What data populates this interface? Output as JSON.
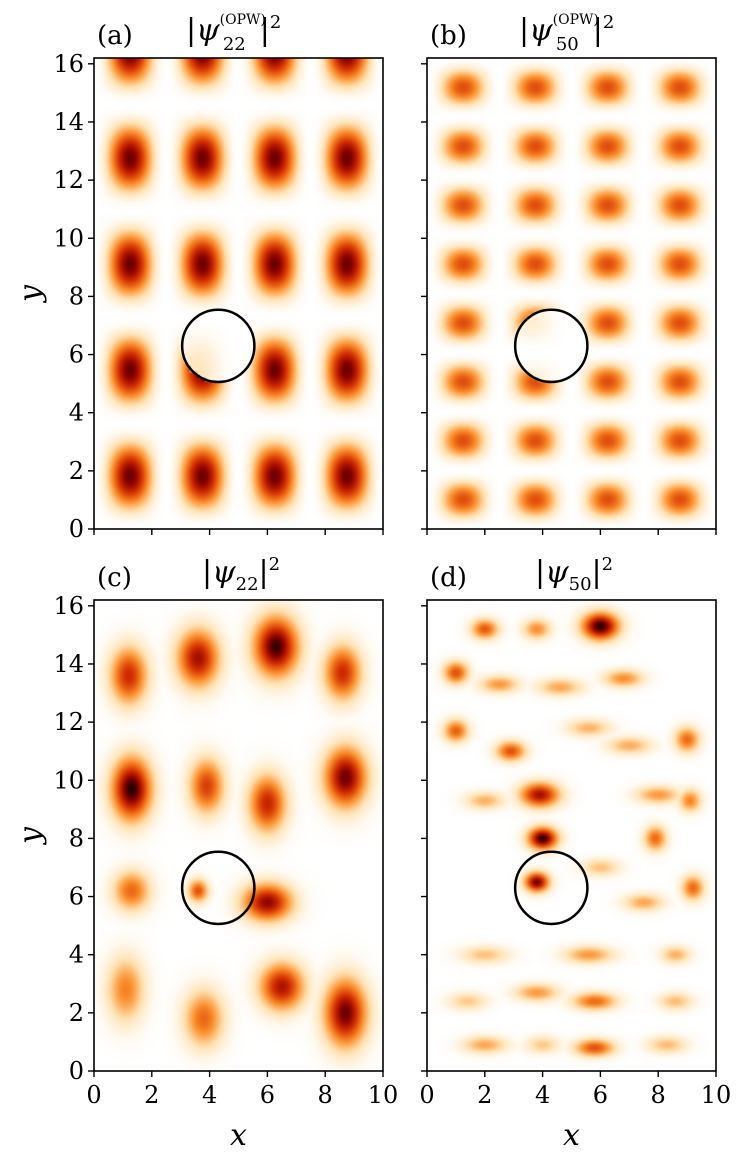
{
  "colors": {
    "colormap": "gist_heat_r",
    "circle": "#000000",
    "frame": "#000000"
  },
  "chart_data": [
    {
      "type": "heatmap",
      "panel": "(a)",
      "title": {
        "prefix": "|",
        "psi": "ψ",
        "sub": "22",
        "sup": "(OPW)",
        "suffix": "|",
        "power": "2"
      },
      "xlim": [
        0,
        10
      ],
      "ylim": [
        0,
        16.2
      ],
      "xticks": [],
      "yticks": [
        "0",
        "2",
        "4",
        "6",
        "8",
        "10",
        "12",
        "14",
        "16"
      ],
      "ylabel": "y",
      "xlabel": "",
      "circle": {
        "cx": 4.3,
        "cy": 6.3,
        "r": 1.25
      },
      "field": {
        "kind": "opw",
        "nx": 2,
        "ny": 2,
        "lx": 10,
        "ly": 16.2,
        "scale": 0.92
      }
    },
    {
      "type": "heatmap",
      "panel": "(b)",
      "title": {
        "prefix": "|",
        "psi": "ψ",
        "sub": "50",
        "sup": "(OPW)",
        "suffix": "|",
        "power": "2"
      },
      "xlim": [
        0,
        10
      ],
      "ylim": [
        0,
        16.2
      ],
      "xticks": [],
      "yticks": [],
      "ylabel": "",
      "xlabel": "",
      "circle": {
        "cx": 4.3,
        "cy": 6.3,
        "r": 1.25
      },
      "field": {
        "kind": "opw",
        "nx": 2,
        "ny": 4,
        "lx": 10,
        "ly": 16.2,
        "scale": 0.62
      }
    },
    {
      "type": "heatmap",
      "panel": "(c)",
      "title": {
        "prefix": "|",
        "psi": "ψ",
        "sub": "22",
        "sup": "",
        "suffix": "|",
        "power": "2"
      },
      "xlim": [
        0,
        10
      ],
      "ylim": [
        0,
        16.2
      ],
      "xticks": [
        "0",
        "2",
        "4",
        "6",
        "8",
        "10"
      ],
      "yticks": [
        "0",
        "2",
        "4",
        "6",
        "8",
        "10",
        "12",
        "14",
        "16"
      ],
      "ylabel": "y",
      "xlabel": "x",
      "circle": {
        "cx": 4.3,
        "cy": 6.3,
        "r": 1.25
      },
      "field": {
        "kind": "blobs",
        "blobs": [
          [
            1.3,
            9.7,
            0.8,
            1.25,
            1.0
          ],
          [
            8.7,
            10.1,
            0.85,
            1.2,
            0.92
          ],
          [
            6.3,
            14.6,
            0.9,
            1.2,
            0.98
          ],
          [
            8.7,
            2.0,
            0.85,
            1.35,
            0.92
          ],
          [
            1.2,
            13.6,
            0.75,
            1.15,
            0.72
          ],
          [
            3.6,
            14.2,
            0.85,
            1.15,
            0.82
          ],
          [
            8.6,
            13.7,
            0.75,
            1.1,
            0.72
          ],
          [
            3.9,
            9.8,
            0.7,
            1.1,
            0.66
          ],
          [
            6.0,
            9.2,
            0.75,
            1.15,
            0.74
          ],
          [
            6.0,
            5.8,
            1.0,
            0.75,
            0.86
          ],
          [
            3.6,
            6.2,
            0.4,
            0.45,
            0.62
          ],
          [
            1.3,
            6.2,
            0.75,
            0.8,
            0.55
          ],
          [
            6.5,
            2.9,
            0.9,
            0.95,
            0.8
          ],
          [
            1.1,
            2.8,
            0.75,
            1.3,
            0.48
          ],
          [
            3.8,
            1.8,
            0.8,
            1.15,
            0.55
          ]
        ]
      }
    },
    {
      "type": "heatmap",
      "panel": "(d)",
      "title": {
        "prefix": "|",
        "psi": "ψ",
        "sub": "50",
        "sup": "",
        "suffix": "|",
        "power": "2"
      },
      "xlim": [
        0,
        10
      ],
      "ylim": [
        0,
        16.2
      ],
      "xticks": [
        "0",
        "2",
        "4",
        "6",
        "8",
        "10"
      ],
      "yticks": [],
      "ylabel": "",
      "xlabel": "x",
      "circle": {
        "cx": 4.3,
        "cy": 6.3,
        "r": 1.25
      },
      "field": {
        "kind": "blobs",
        "blobs": [
          [
            6.0,
            15.3,
            0.75,
            0.55,
            1.0
          ],
          [
            4.0,
            8.0,
            0.6,
            0.45,
            1.0
          ],
          [
            3.8,
            6.5,
            0.5,
            0.4,
            0.92
          ],
          [
            3.9,
            9.5,
            0.8,
            0.5,
            0.82
          ],
          [
            2.0,
            15.2,
            0.55,
            0.4,
            0.6
          ],
          [
            3.8,
            15.2,
            0.55,
            0.4,
            0.45
          ],
          [
            1.0,
            13.7,
            0.5,
            0.45,
            0.62
          ],
          [
            1.0,
            11.7,
            0.5,
            0.45,
            0.58
          ],
          [
            2.5,
            13.3,
            0.8,
            0.35,
            0.42
          ],
          [
            4.6,
            13.2,
            0.9,
            0.35,
            0.38
          ],
          [
            6.8,
            13.5,
            0.8,
            0.35,
            0.45
          ],
          [
            2.9,
            11.0,
            0.6,
            0.4,
            0.62
          ],
          [
            5.6,
            11.8,
            0.9,
            0.35,
            0.34
          ],
          [
            7.0,
            11.2,
            0.9,
            0.35,
            0.36
          ],
          [
            9.0,
            11.4,
            0.5,
            0.5,
            0.55
          ],
          [
            8.0,
            9.5,
            0.9,
            0.35,
            0.42
          ],
          [
            9.1,
            9.3,
            0.45,
            0.45,
            0.48
          ],
          [
            2.0,
            9.3,
            0.8,
            0.35,
            0.35
          ],
          [
            7.9,
            8.0,
            0.45,
            0.5,
            0.55
          ],
          [
            9.2,
            6.3,
            0.45,
            0.5,
            0.55
          ],
          [
            6.0,
            7.0,
            0.8,
            0.35,
            0.3
          ],
          [
            7.5,
            5.8,
            0.8,
            0.35,
            0.38
          ],
          [
            5.6,
            4.0,
            1.0,
            0.35,
            0.42
          ],
          [
            2.0,
            4.0,
            1.0,
            0.35,
            0.3
          ],
          [
            8.6,
            4.0,
            0.6,
            0.35,
            0.35
          ],
          [
            3.8,
            2.7,
            0.9,
            0.35,
            0.42
          ],
          [
            5.8,
            2.4,
            0.9,
            0.35,
            0.55
          ],
          [
            1.4,
            2.4,
            0.8,
            0.35,
            0.28
          ],
          [
            8.6,
            2.4,
            0.7,
            0.35,
            0.32
          ],
          [
            2.0,
            0.9,
            0.9,
            0.35,
            0.38
          ],
          [
            5.8,
            0.8,
            0.8,
            0.35,
            0.62
          ],
          [
            8.3,
            0.9,
            0.8,
            0.35,
            0.32
          ],
          [
            4.0,
            0.9,
            0.7,
            0.35,
            0.28
          ]
        ]
      }
    }
  ]
}
